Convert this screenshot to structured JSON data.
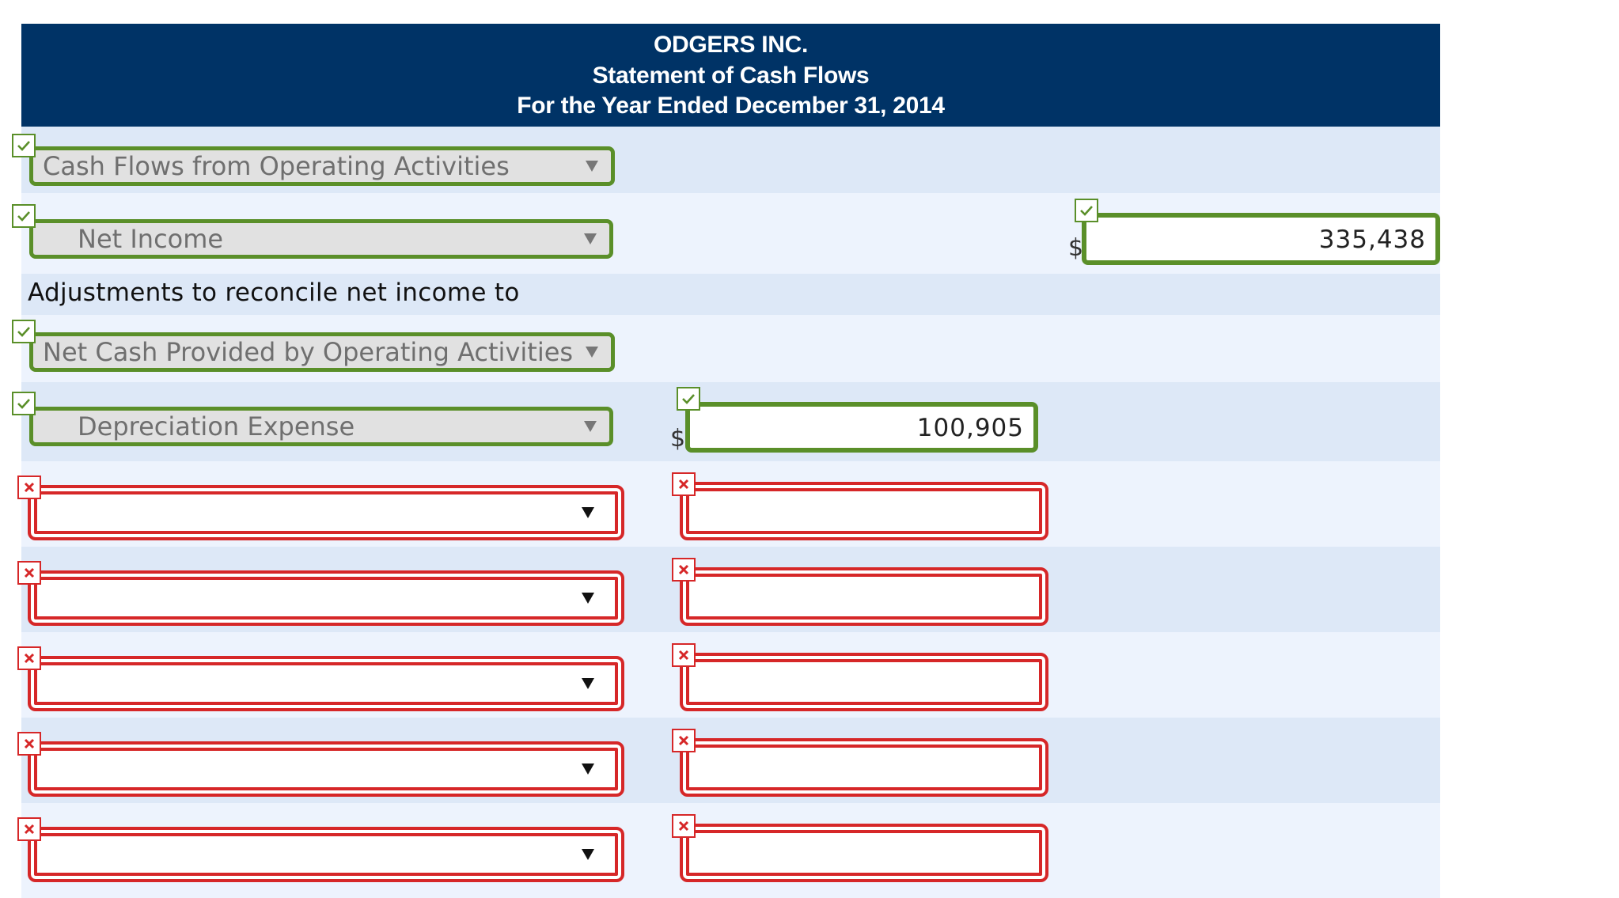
{
  "header": {
    "company": "ODGERS INC.",
    "statement": "Statement of Cash Flows",
    "period": "For the Year Ended December 31, 2014"
  },
  "rows": {
    "operating_heading": {
      "selected": "Cash Flows from Operating Activities",
      "status": "correct"
    },
    "net_income": {
      "selected": "Net Income",
      "currency": "$",
      "amount": "335,438",
      "status": "correct"
    },
    "adjustments_label": "Adjustments to reconcile net income to",
    "net_cash_label": {
      "selected": "Net Cash Provided by Operating Activities",
      "status": "correct"
    },
    "depreciation": {
      "selected": "Depreciation Expense",
      "currency": "$",
      "amount": "100,905",
      "status": "correct"
    },
    "blank_rows": [
      {
        "selected": "",
        "amount": "",
        "status": "incorrect"
      },
      {
        "selected": "",
        "amount": "",
        "status": "incorrect"
      },
      {
        "selected": "",
        "amount": "",
        "status": "incorrect"
      },
      {
        "selected": "",
        "amount": "",
        "status": "incorrect"
      },
      {
        "selected": "",
        "amount": "",
        "status": "incorrect"
      }
    ]
  },
  "colors": {
    "header_bg": "#003366",
    "correct": "#5a8f29",
    "incorrect": "#d62728",
    "row_shade_a": "#dde8f7",
    "row_shade_b": "#edf3fd"
  },
  "icons": {
    "correct": "check-icon",
    "incorrect": "x-icon"
  }
}
